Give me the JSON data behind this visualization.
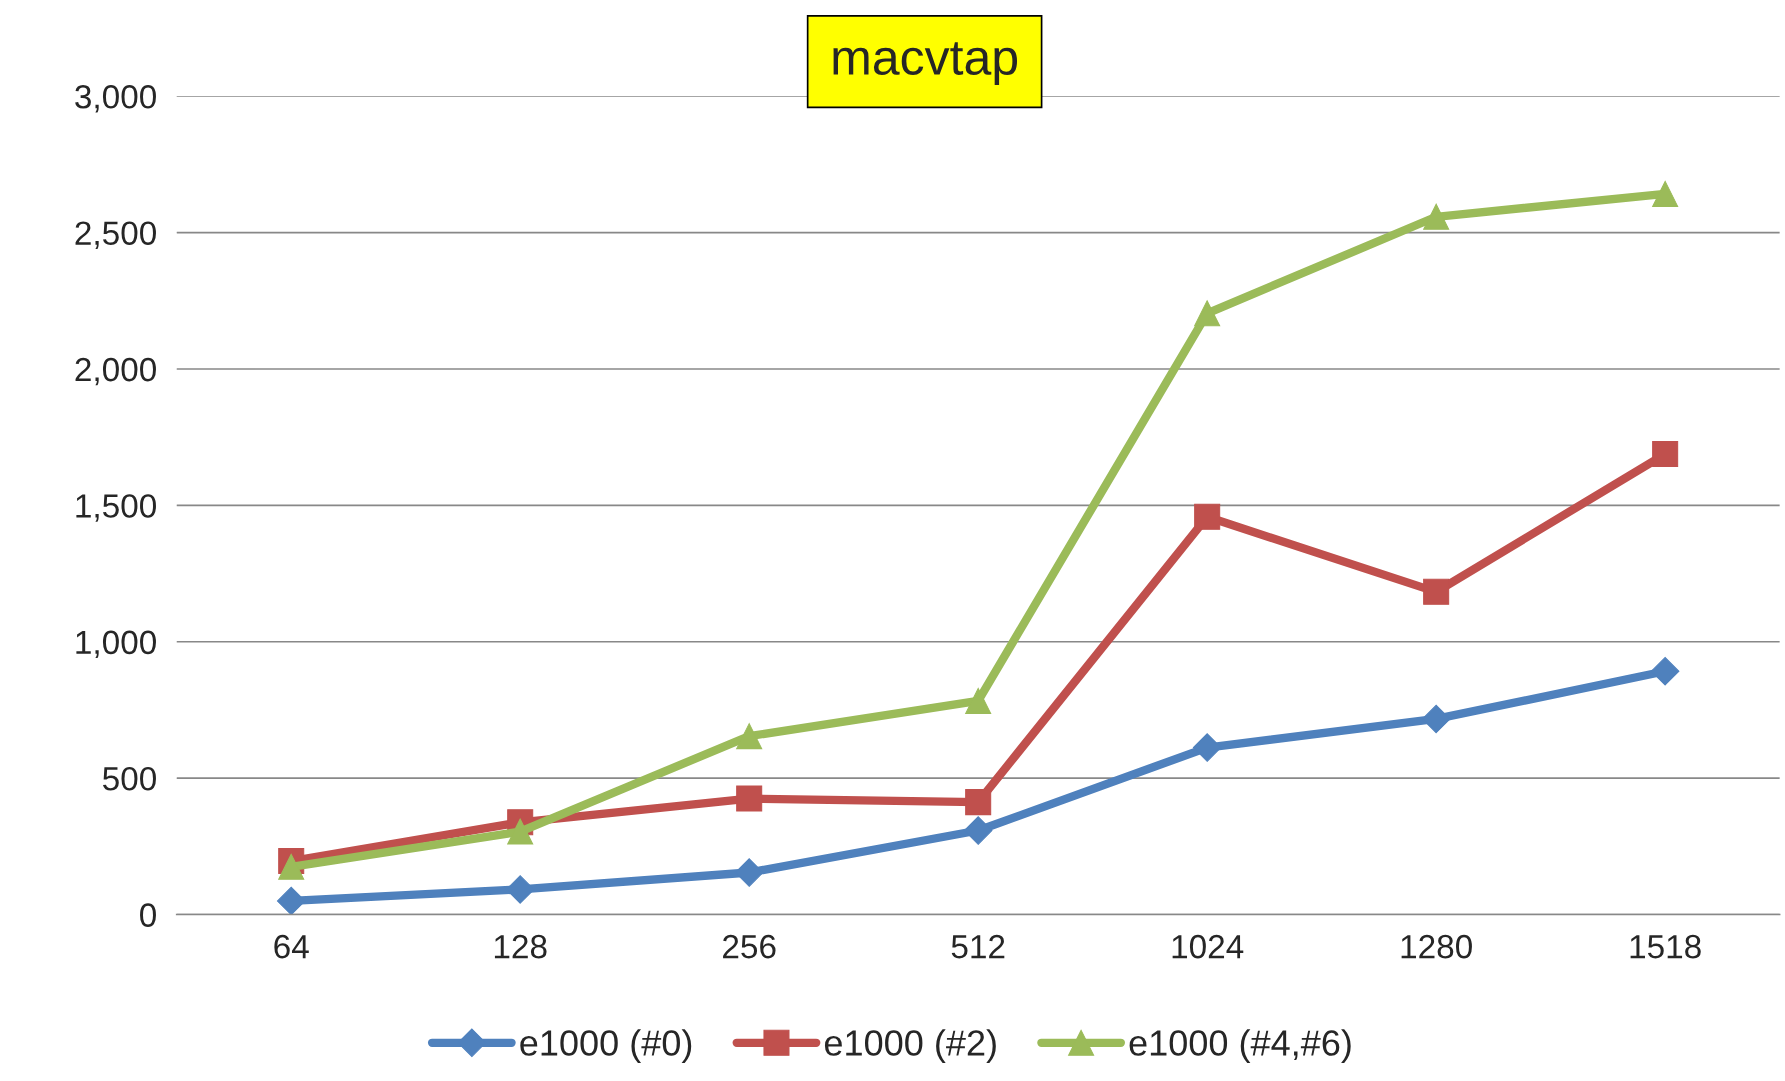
{
  "chart_data": {
    "type": "line",
    "title": "macvtap",
    "categories": [
      "64",
      "128",
      "256",
      "512",
      "1024",
      "1280",
      "1518"
    ],
    "series": [
      {
        "name": "e1000 (#0)",
        "color": "#4f81bd",
        "marker": "diamond",
        "values": [
          50,
          92,
          154,
          308,
          612,
          717,
          892
        ]
      },
      {
        "name": "e1000 (#2)",
        "color": "#c0504d",
        "marker": "square",
        "values": [
          196,
          338,
          425,
          412,
          1458,
          1183,
          1688
        ]
      },
      {
        "name": "e1000 (#4,#6)",
        "color": "#9bbb59",
        "marker": "triangle",
        "values": [
          175,
          304,
          654,
          783,
          2204,
          2558,
          2642
        ]
      }
    ],
    "ylim": [
      0,
      3000
    ],
    "yticks": [
      {
        "value": 0,
        "label": "0"
      },
      {
        "value": 500,
        "label": "500"
      },
      {
        "value": 1000,
        "label": "1,000"
      },
      {
        "value": 1500,
        "label": "1,500"
      },
      {
        "value": 2000,
        "label": "2,000"
      },
      {
        "value": 2500,
        "label": "2,500"
      },
      {
        "value": 3000,
        "label": "3,000"
      }
    ],
    "grid": "y",
    "legend": "bottom"
  }
}
